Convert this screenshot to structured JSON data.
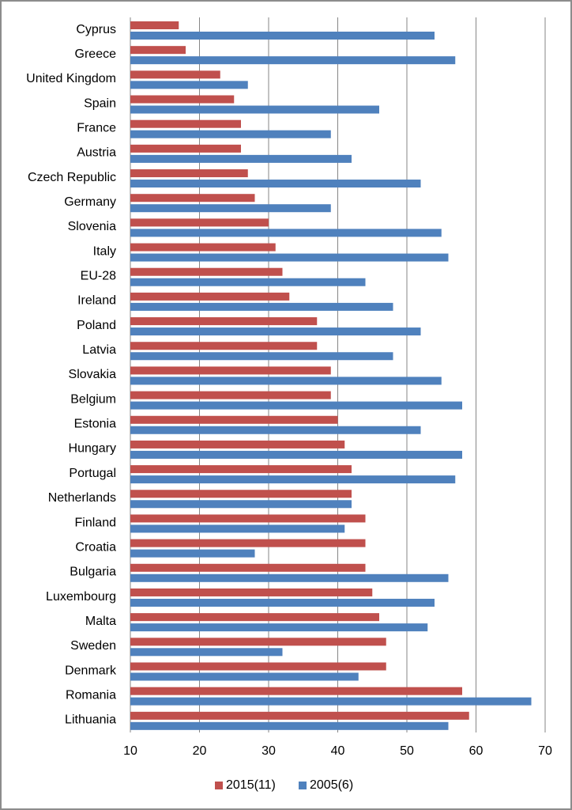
{
  "chart_data": {
    "type": "bar",
    "orientation": "horizontal",
    "categories": [
      "Cyprus",
      "Greece",
      "United Kingdom",
      "Spain",
      "France",
      "Austria",
      "Czech Republic",
      "Germany",
      "Slovenia",
      "Italy",
      "EU-28",
      "Ireland",
      "Poland",
      "Latvia",
      "Slovakia",
      "Belgium",
      "Estonia",
      "Hungary",
      "Portugal",
      "Netherlands",
      "Finland",
      "Croatia",
      "Bulgaria",
      "Luxembourg",
      "Malta",
      "Sweden",
      "Denmark",
      "Romania",
      "Lithuania"
    ],
    "series": [
      {
        "name": "2015(11)",
        "color": "#c0504d",
        "values": [
          17,
          18,
          23,
          25,
          26,
          26,
          27,
          28,
          30,
          31,
          32,
          33,
          37,
          37,
          39,
          39,
          40,
          41,
          42,
          42,
          44,
          44,
          44,
          45,
          46,
          47,
          47,
          58,
          59
        ]
      },
      {
        "name": "2005(6)",
        "color": "#4f81bd",
        "values": [
          54,
          57,
          27,
          46,
          39,
          42,
          52,
          39,
          55,
          56,
          44,
          48,
          52,
          48,
          55,
          58,
          52,
          58,
          57,
          42,
          41,
          28,
          56,
          54,
          53,
          32,
          43,
          68,
          56
        ]
      }
    ],
    "xlim": [
      10,
      70
    ],
    "xticks": [
      10,
      20,
      30,
      40,
      50,
      60,
      70
    ],
    "grid": true,
    "legend": "bottom"
  }
}
